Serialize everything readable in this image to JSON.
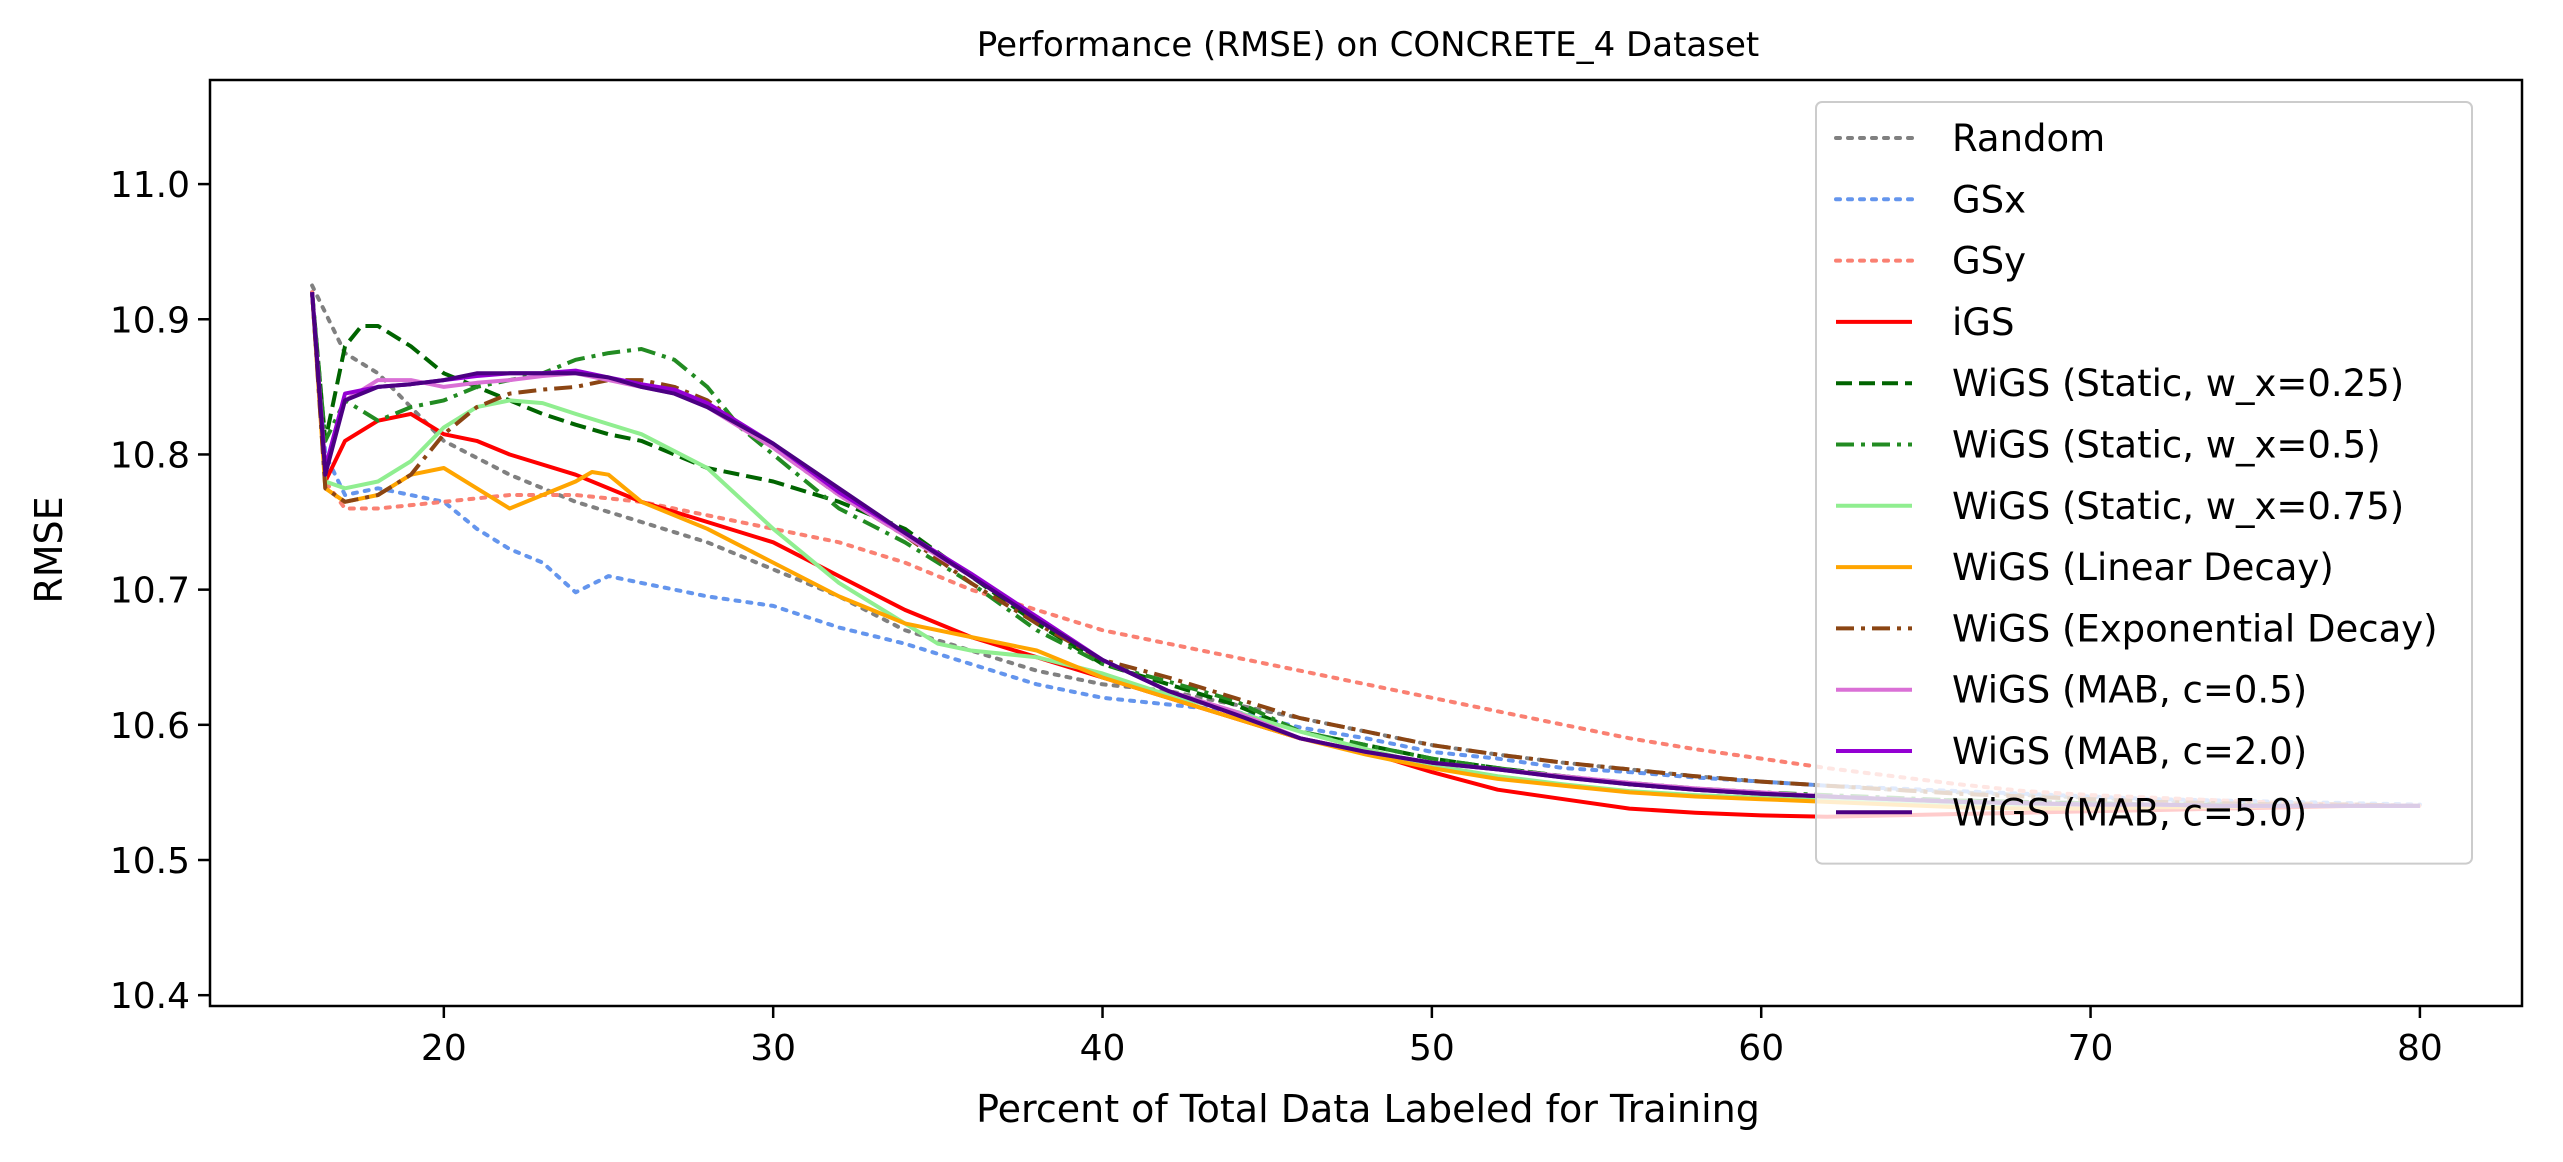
{
  "chart_data": {
    "type": "line",
    "title": "Performance (RMSE) on CONCRETE_4 Dataset",
    "xlabel": "Percent of Total Data Labeled for Training",
    "ylabel": "RMSE",
    "xlim": [
      12.9,
      83.1
    ],
    "ylim": [
      10.392,
      11.077
    ],
    "xticks": [
      20,
      30,
      40,
      50,
      60,
      70,
      80
    ],
    "yticks": [
      10.4,
      10.5,
      10.6,
      10.7,
      10.8,
      10.9,
      11.0
    ],
    "grid": false,
    "legend_position": "top-right",
    "series": [
      {
        "name": "Random",
        "color": "#808080",
        "style": "dotted",
        "x": [
          16,
          17,
          18,
          20,
          22,
          24,
          26,
          28,
          30,
          32,
          34,
          36,
          38,
          40,
          42,
          44,
          46,
          48,
          50,
          52,
          54,
          56,
          58,
          60,
          62,
          64,
          66,
          68,
          70,
          72,
          74,
          76,
          78,
          80
        ],
        "y": [
          10.925,
          10.875,
          10.86,
          10.81,
          10.785,
          10.765,
          10.75,
          10.735,
          10.715,
          10.695,
          10.67,
          10.655,
          10.64,
          10.63,
          10.625,
          10.615,
          10.605,
          10.595,
          10.585,
          10.578,
          10.572,
          10.567,
          10.562,
          10.558,
          10.555,
          10.552,
          10.55,
          10.548,
          10.546,
          10.544,
          10.543,
          10.542,
          10.541,
          10.54
        ]
      },
      {
        "name": "GSx",
        "color": "#6495ed",
        "style": "dotted",
        "x": [
          16,
          16.4,
          17,
          18,
          20,
          21,
          22,
          23,
          24,
          25,
          26,
          27,
          28,
          30,
          32,
          34,
          36,
          38,
          40,
          42,
          44,
          46,
          48,
          50,
          52,
          54,
          56,
          58,
          60,
          62,
          64,
          66,
          68,
          70,
          72,
          74,
          76,
          78,
          80
        ],
        "y": [
          10.92,
          10.8,
          10.77,
          10.775,
          10.765,
          10.745,
          10.73,
          10.72,
          10.698,
          10.71,
          10.705,
          10.7,
          10.695,
          10.688,
          10.672,
          10.66,
          10.645,
          10.63,
          10.62,
          10.615,
          10.61,
          10.598,
          10.59,
          10.58,
          10.575,
          10.568,
          10.565,
          10.561,
          10.558,
          10.555,
          10.553,
          10.551,
          10.549,
          10.547,
          10.545,
          10.544,
          10.543,
          10.542,
          10.541
        ]
      },
      {
        "name": "GSy",
        "color": "#fa8072",
        "style": "dotted",
        "x": [
          16,
          16.4,
          17,
          18,
          20,
          22,
          24,
          26,
          28,
          30,
          32,
          34,
          36,
          38,
          40,
          42,
          44,
          46,
          48,
          50,
          52,
          54,
          56,
          58,
          60,
          62,
          64,
          66,
          68,
          70,
          72,
          74,
          76,
          78,
          80
        ],
        "y": [
          10.92,
          10.78,
          10.76,
          10.76,
          10.765,
          10.77,
          10.77,
          10.765,
          10.755,
          10.745,
          10.735,
          10.72,
          10.7,
          10.685,
          10.67,
          10.66,
          10.65,
          10.64,
          10.63,
          10.62,
          10.61,
          10.6,
          10.59,
          10.582,
          10.575,
          10.568,
          10.562,
          10.556,
          10.551,
          10.548,
          10.546,
          10.544,
          10.542,
          10.541,
          10.54
        ]
      },
      {
        "name": "iGS",
        "color": "#ff0000",
        "style": "solid",
        "x": [
          16,
          16.4,
          17,
          18,
          19,
          20,
          21,
          22,
          24,
          26,
          28,
          30,
          32,
          34,
          36,
          38,
          40,
          42,
          44,
          46,
          48,
          50,
          52,
          54,
          56,
          58,
          60,
          62,
          64,
          66,
          68,
          70,
          72,
          74,
          76,
          78,
          80
        ],
        "y": [
          10.92,
          10.78,
          10.81,
          10.825,
          10.83,
          10.815,
          10.81,
          10.8,
          10.785,
          10.765,
          10.75,
          10.735,
          10.71,
          10.685,
          10.665,
          10.65,
          10.635,
          10.62,
          10.605,
          10.59,
          10.58,
          10.565,
          10.552,
          10.545,
          10.538,
          10.535,
          10.533,
          10.532,
          10.533,
          10.534,
          10.535,
          10.536,
          10.537,
          10.538,
          10.539,
          10.54,
          10.54
        ]
      },
      {
        "name": "WiGS (Static, w_x=0.25)",
        "color": "#006400",
        "style": "dashed",
        "x": [
          16,
          16.4,
          17,
          17.5,
          18,
          19,
          20,
          21,
          22,
          23,
          24,
          25,
          26,
          27,
          28,
          29,
          30,
          32,
          34,
          36,
          38,
          40,
          42,
          44,
          46,
          48,
          50,
          52,
          54,
          56,
          58,
          60,
          62,
          64,
          66,
          68,
          70,
          72,
          74,
          76,
          78,
          80
        ],
        "y": [
          10.92,
          10.81,
          10.88,
          10.895,
          10.895,
          10.88,
          10.86,
          10.85,
          10.84,
          10.83,
          10.822,
          10.815,
          10.81,
          10.8,
          10.79,
          10.785,
          10.78,
          10.765,
          10.745,
          10.71,
          10.675,
          10.645,
          10.63,
          10.615,
          10.595,
          10.585,
          10.575,
          10.568,
          10.562,
          10.556,
          10.552,
          10.549,
          10.547,
          10.545,
          10.544,
          10.543,
          10.542,
          10.541,
          10.541,
          10.54,
          10.54,
          10.54
        ]
      },
      {
        "name": "WiGS (Static, w_x=0.5)",
        "color": "#228b22",
        "style": "dashdot",
        "x": [
          16,
          16.4,
          17,
          18,
          19,
          20,
          21,
          22,
          23,
          24,
          25,
          26,
          27,
          28,
          29,
          30,
          32,
          34,
          36,
          38,
          40,
          42,
          44,
          46,
          48,
          50,
          52,
          54,
          56,
          58,
          60,
          62,
          64,
          66,
          68,
          70,
          72,
          74,
          76,
          78,
          80
        ],
        "y": [
          10.92,
          10.81,
          10.84,
          10.825,
          10.835,
          10.84,
          10.85,
          10.855,
          10.86,
          10.87,
          10.875,
          10.878,
          10.87,
          10.85,
          10.82,
          10.8,
          10.76,
          10.735,
          10.705,
          10.67,
          10.645,
          10.632,
          10.618,
          10.595,
          10.585,
          10.575,
          10.568,
          10.562,
          10.557,
          10.553,
          10.55,
          10.548,
          10.546,
          10.544,
          10.543,
          10.542,
          10.541,
          10.541,
          10.54,
          10.54,
          10.54
        ]
      },
      {
        "name": "WiGS (Static, w_x=0.75)",
        "color": "#90ee90",
        "style": "solid",
        "x": [
          16,
          16.4,
          17,
          18,
          19,
          20,
          21,
          22,
          23,
          24,
          26,
          28,
          30,
          32,
          34,
          35,
          36,
          38,
          40,
          42,
          44,
          46,
          48,
          50,
          52,
          54,
          56,
          58,
          60,
          62,
          64,
          66,
          68,
          70,
          72,
          74,
          76,
          78,
          80
        ],
        "y": [
          10.92,
          10.78,
          10.775,
          10.78,
          10.795,
          10.82,
          10.835,
          10.84,
          10.838,
          10.83,
          10.815,
          10.79,
          10.745,
          10.705,
          10.675,
          10.66,
          10.655,
          10.65,
          10.638,
          10.622,
          10.61,
          10.595,
          10.582,
          10.57,
          10.562,
          10.556,
          10.551,
          10.548,
          10.546,
          10.544,
          10.543,
          10.542,
          10.541,
          10.541,
          10.54,
          10.54,
          10.54,
          10.54,
          10.54
        ]
      },
      {
        "name": "WiGS (Linear Decay)",
        "color": "#ffa500",
        "style": "solid",
        "x": [
          16,
          16.4,
          17,
          18,
          19,
          20,
          21,
          22,
          23,
          24,
          24.5,
          25,
          26,
          28,
          30,
          32,
          34,
          36,
          38,
          40,
          42,
          44,
          46,
          48,
          50,
          52,
          54,
          56,
          58,
          60,
          62,
          64,
          66,
          68,
          70,
          72,
          74,
          76,
          78,
          80
        ],
        "y": [
          10.92,
          10.775,
          10.765,
          10.77,
          10.785,
          10.79,
          10.775,
          10.76,
          10.77,
          10.78,
          10.787,
          10.785,
          10.765,
          10.745,
          10.72,
          10.695,
          10.675,
          10.665,
          10.655,
          10.635,
          10.62,
          10.605,
          10.59,
          10.578,
          10.568,
          10.56,
          10.555,
          10.55,
          10.547,
          10.545,
          10.543,
          10.541,
          10.539,
          10.538,
          10.538,
          10.539,
          10.539,
          10.54,
          10.54,
          10.54
        ]
      },
      {
        "name": "WiGS (Exponential Decay)",
        "color": "#8b4513",
        "style": "dashdot",
        "x": [
          16,
          16.4,
          17,
          18,
          19,
          20,
          21,
          22,
          23,
          24,
          25,
          26,
          27,
          28,
          30,
          32,
          34,
          36,
          38,
          40,
          42,
          44,
          46,
          48,
          50,
          52,
          54,
          56,
          58,
          60,
          62,
          64,
          66,
          68,
          70,
          72,
          74,
          76,
          78,
          80
        ],
        "y": [
          10.92,
          10.775,
          10.765,
          10.77,
          10.785,
          10.815,
          10.835,
          10.845,
          10.848,
          10.85,
          10.855,
          10.855,
          10.85,
          10.84,
          10.805,
          10.77,
          10.74,
          10.705,
          10.675,
          10.648,
          10.635,
          10.62,
          10.605,
          10.595,
          10.585,
          10.578,
          10.572,
          10.567,
          10.562,
          10.558,
          10.555,
          10.552,
          10.549,
          10.547,
          10.545,
          10.543,
          10.542,
          10.541,
          10.541,
          10.54
        ]
      },
      {
        "name": "WiGS (MAB, c=0.5)",
        "color": "#da70d6",
        "style": "solid",
        "x": [
          16,
          16.4,
          17,
          18,
          19,
          20,
          21,
          22,
          23,
          24,
          25,
          26,
          27,
          28,
          30,
          32,
          34,
          36,
          38,
          40,
          42,
          44,
          46,
          48,
          50,
          52,
          54,
          56,
          58,
          60,
          62,
          64,
          66,
          68,
          70,
          72,
          74,
          76,
          78,
          80
        ],
        "y": [
          10.92,
          10.79,
          10.84,
          10.855,
          10.855,
          10.85,
          10.853,
          10.855,
          10.858,
          10.86,
          10.855,
          10.85,
          10.845,
          10.835,
          10.805,
          10.77,
          10.74,
          10.71,
          10.68,
          10.648,
          10.625,
          10.61,
          10.59,
          10.58,
          10.572,
          10.567,
          10.562,
          10.557,
          10.553,
          10.55,
          10.547,
          10.545,
          10.543,
          10.542,
          10.541,
          10.541,
          10.54,
          10.54,
          10.54,
          10.54
        ]
      },
      {
        "name": "WiGS (MAB, c=2.0)",
        "color": "#9400d3",
        "style": "solid",
        "x": [
          16,
          16.4,
          17,
          18,
          19,
          20,
          21,
          22,
          23,
          24,
          25,
          26,
          27,
          28,
          30,
          32,
          34,
          36,
          38,
          40,
          42,
          44,
          46,
          48,
          50,
          52,
          54,
          56,
          58,
          60,
          62,
          64,
          66,
          68,
          70,
          72,
          74,
          76,
          78,
          80
        ],
        "y": [
          10.92,
          10.79,
          10.845,
          10.85,
          10.852,
          10.855,
          10.858,
          10.86,
          10.86,
          10.862,
          10.857,
          10.852,
          10.848,
          10.838,
          10.808,
          10.772,
          10.742,
          10.712,
          10.68,
          10.648,
          10.625,
          10.608,
          10.59,
          10.58,
          10.572,
          10.567,
          10.561,
          10.556,
          10.552,
          10.549,
          10.547,
          10.545,
          10.543,
          10.542,
          10.541,
          10.541,
          10.54,
          10.54,
          10.54,
          10.54
        ]
      },
      {
        "name": "WiGS (MAB, c=5.0)",
        "color": "#4b0082",
        "style": "solid",
        "x": [
          16,
          16.4,
          17,
          18,
          19,
          20,
          21,
          22,
          23,
          24,
          25,
          26,
          27,
          28,
          30,
          32,
          34,
          36,
          38,
          40,
          42,
          44,
          46,
          48,
          50,
          52,
          54,
          56,
          58,
          60,
          62,
          64,
          66,
          68,
          70,
          72,
          74,
          76,
          78,
          80
        ],
        "y": [
          10.92,
          10.785,
          10.84,
          10.85,
          10.852,
          10.855,
          10.86,
          10.86,
          10.86,
          10.86,
          10.857,
          10.85,
          10.845,
          10.835,
          10.808,
          10.775,
          10.742,
          10.71,
          10.678,
          10.648,
          10.625,
          10.608,
          10.59,
          10.58,
          10.572,
          10.567,
          10.561,
          10.556,
          10.552,
          10.549,
          10.547,
          10.545,
          10.543,
          10.542,
          10.541,
          10.541,
          10.54,
          10.54,
          10.54,
          10.54
        ]
      }
    ]
  }
}
